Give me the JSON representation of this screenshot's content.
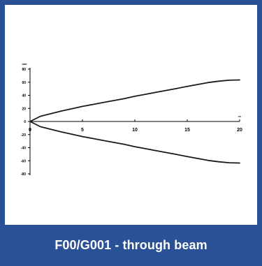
{
  "caption": "F00/G001 - through beam",
  "colors": {
    "frame": "#2a5096",
    "curve": "#1a1a1a",
    "axis": "#000000",
    "background": "#ffffff"
  },
  "chart_data": {
    "type": "line",
    "title": "",
    "xlabel": "m",
    "ylabel": "mm",
    "xlim": [
      0,
      20
    ],
    "ylim": [
      -80,
      80
    ],
    "x_ticks": [
      0,
      5,
      10,
      15,
      20
    ],
    "y_ticks": [
      80,
      60,
      40,
      20,
      0,
      -20,
      -40,
      -60,
      -80
    ],
    "x_tick_labels": [
      "0",
      "5",
      "10",
      "15",
      "20"
    ],
    "y_tick_labels": [
      "80",
      "60",
      "40",
      "20",
      "0",
      "-20",
      "-40",
      "-60",
      "-80"
    ],
    "grid": false,
    "series": [
      {
        "x": [
          0,
          1,
          2,
          3,
          4,
          5,
          6,
          7,
          8,
          9,
          10,
          11,
          12,
          13,
          14,
          15,
          16,
          17,
          18,
          19,
          20
        ],
        "values": [
          0,
          8,
          12,
          16,
          19.5,
          23,
          26,
          29,
          32,
          35,
          38.5,
          41.5,
          44.5,
          47.5,
          50.5,
          53.5,
          56.5,
          59.5,
          61.5,
          63,
          63.5
        ]
      },
      {
        "x": [
          0,
          1,
          2,
          3,
          4,
          5,
          6,
          7,
          8,
          9,
          10,
          11,
          12,
          13,
          14,
          15,
          16,
          17,
          18,
          19,
          20
        ],
        "values": [
          0,
          -8,
          -12,
          -16,
          -19.5,
          -23,
          -26,
          -29,
          -32,
          -35,
          -38.5,
          -41.5,
          -44.5,
          -47.5,
          -50.5,
          -53.5,
          -56.5,
          -59.5,
          -61.5,
          -63,
          -63.5
        ]
      }
    ]
  }
}
